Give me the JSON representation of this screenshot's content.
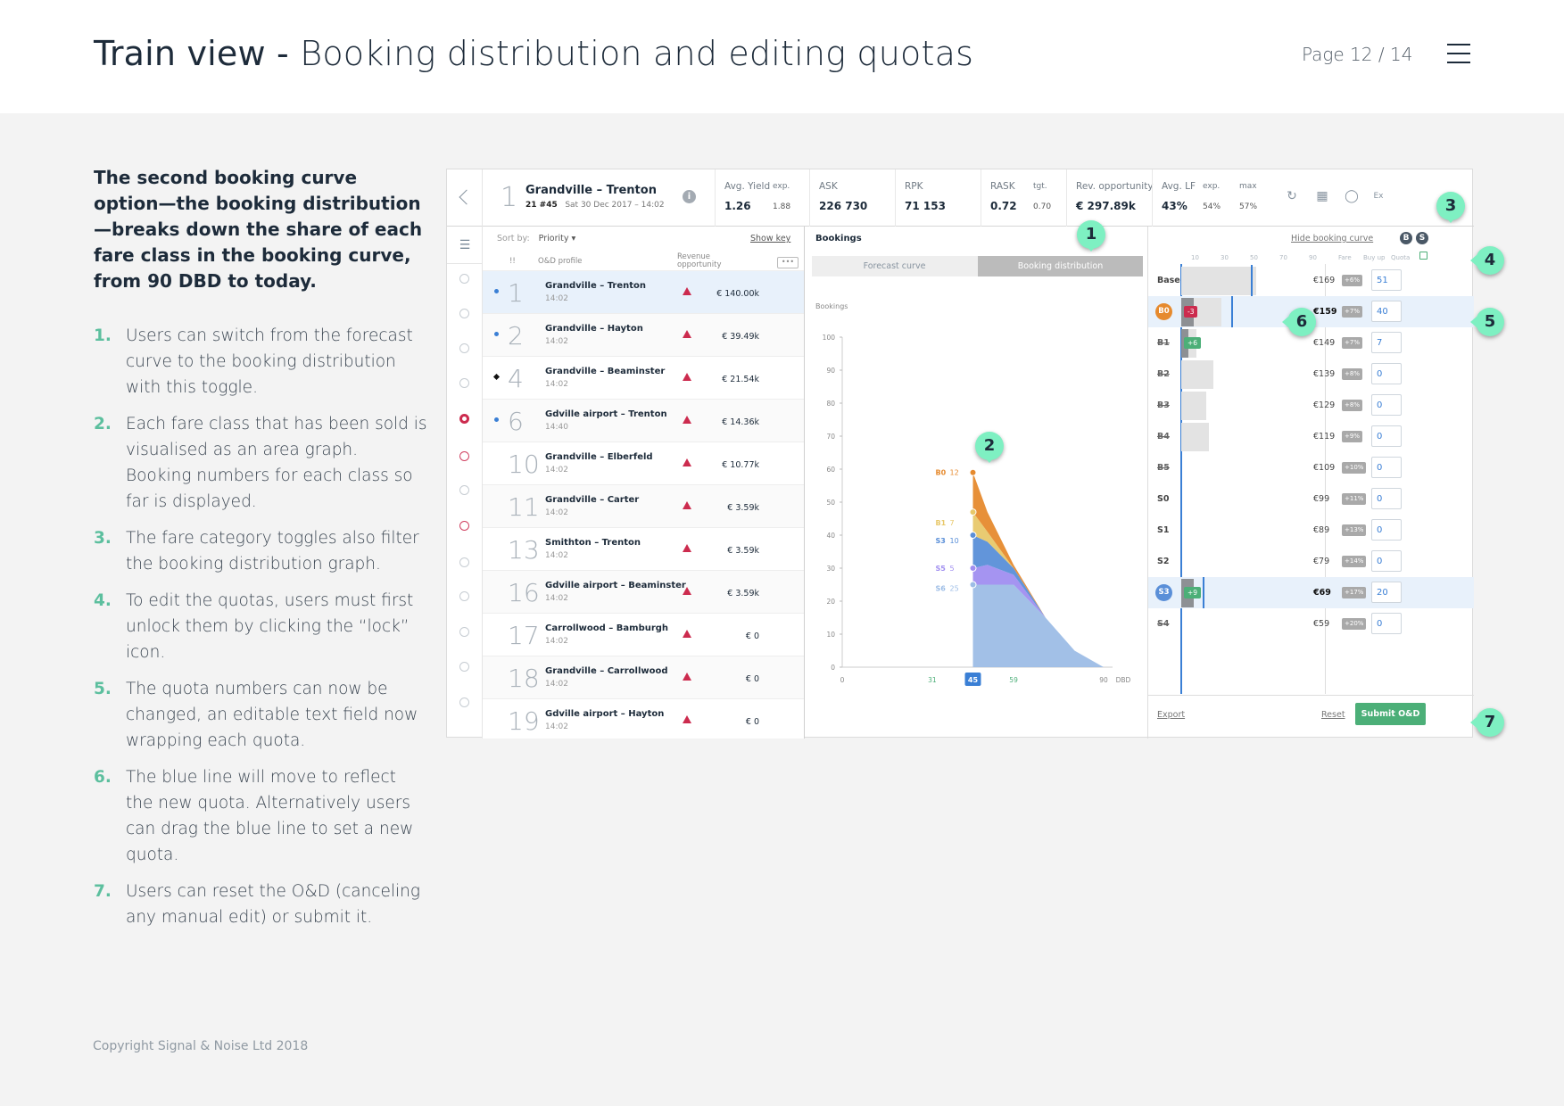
{
  "slide": {
    "title_strong": "Train view - ",
    "title_rest": "Booking distribution and editing quotas",
    "page": "Page 12 / 14",
    "intro": "The second booking curve option—the booking distribution—breaks down the share of each fare class in the booking curve, from 90 DBD to today.",
    "steps": [
      {
        "n": "1.",
        "text": "Users can switch from the forecast curve to the booking distribution with this toggle."
      },
      {
        "n": "2.",
        "text": "Each fare class that has been sold is visualised as an area graph. Booking numbers for each class so far is displayed."
      },
      {
        "n": "3.",
        "text": "The fare category toggles also filter the booking distribution graph."
      },
      {
        "n": "4.",
        "text": "To edit the quotas, users must first unlock them by clicking the “lock” icon."
      },
      {
        "n": "5.",
        "text": "The quota numbers can now be changed, an editable text field now wrapping each quota."
      },
      {
        "n": "6.",
        "text": "The blue line will move to reflect the new quota. Alternatively users can drag the blue line to set a new quota."
      },
      {
        "n": "7.",
        "text": "Users can reset the O&D (canceling any manual edit) or submit it."
      }
    ],
    "copyright": "Copyright Signal & Noise Ltd 2018",
    "callouts": [
      "1",
      "2",
      "3",
      "4",
      "5",
      "6",
      "7"
    ]
  },
  "header": {
    "num": "1",
    "route": "Grandville – Trenton",
    "train": "21 #45",
    "date": "Sat 30 Dec 2017 – 14:02",
    "kpis": [
      {
        "label": "Avg. Yield",
        "value": "1.26",
        "sub_label": "exp.",
        "sub_value": "1.88"
      },
      {
        "label": "ASK",
        "value": "226 730"
      },
      {
        "label": "RPK",
        "value": "71 153"
      },
      {
        "label": "RASK",
        "value": "0.72",
        "sub_label": "tgt.",
        "sub_value": "0.70"
      },
      {
        "label": "Rev. opportunity",
        "value": "€ 297.89k"
      },
      {
        "label": "Avg. LF",
        "value": "43%",
        "sub_label": "exp.",
        "sub_value": "54%",
        "sub_label2": "max",
        "sub_value2": "57%"
      }
    ],
    "ex_label": "Ex"
  },
  "list": {
    "sort_label": "Sort by:",
    "sort_value": "Priority ▾",
    "show_key": "Show key",
    "col_flag": "!!",
    "col_profile": "O&D profile",
    "col_rev": "Revenue opportunity",
    "rows": [
      {
        "n": "1",
        "route": "Grandville – Trenton",
        "time": "14:02",
        "rev": "€ 140.00k"
      },
      {
        "n": "2",
        "route": "Grandville – Hayton",
        "time": "14:02",
        "rev": "€ 39.49k"
      },
      {
        "n": "4",
        "route": "Grandville – Beaminster",
        "time": "14:02",
        "rev": "€ 21.54k"
      },
      {
        "n": "6",
        "route": "Gdville airport – Trenton",
        "time": "14:40",
        "rev": "€ 14.36k"
      },
      {
        "n": "10",
        "route": "Grandville – Elberfeld",
        "time": "14:02",
        "rev": "€ 10.77k"
      },
      {
        "n": "11",
        "route": "Grandville – Carter",
        "time": "14:02",
        "rev": "€ 3.59k"
      },
      {
        "n": "13",
        "route": "Smithton – Trenton",
        "time": "14:02",
        "rev": "€ 3.59k"
      },
      {
        "n": "16",
        "route": "Gdville airport – Beaminster",
        "time": "14:02",
        "rev": "€ 3.59k"
      },
      {
        "n": "17",
        "route": "Carrollwood – Bamburgh",
        "time": "14:02",
        "rev": "€ 0"
      },
      {
        "n": "18",
        "route": "Grandville – Carrollwood",
        "time": "14:02",
        "rev": "€ 0"
      },
      {
        "n": "19",
        "route": "Gdville airport – Hayton",
        "time": "14:02",
        "rev": "€ 0"
      }
    ]
  },
  "bookings": {
    "title": "Bookings",
    "toggle_forecast": "Forecast curve",
    "toggle_distribution": "Booking distribution"
  },
  "chart_data": {
    "type": "area",
    "ylabel": "Bookings",
    "xlabel": "DBD",
    "ylim": [
      0,
      100
    ],
    "yticks": [
      0,
      10,
      20,
      30,
      40,
      50,
      60,
      70,
      80,
      90,
      100
    ],
    "xticks": [
      "0",
      "31",
      "45",
      "59",
      "90"
    ],
    "current_dbd": "45",
    "series_colors": {
      "B0": "#e68a2e",
      "B1": "#e8c86a",
      "S3": "#5a8fd8",
      "S5": "#a08ef0",
      "S6": "#9dbde6"
    },
    "stack_labels": [
      {
        "name": "B0",
        "value": "12"
      },
      {
        "name": "B1",
        "value": "7"
      },
      {
        "name": "S3",
        "value": "10"
      },
      {
        "name": "S5",
        "value": "5"
      },
      {
        "name": "S6",
        "value": "25"
      }
    ],
    "x_dbd": [
      45,
      50,
      59,
      70,
      80,
      90
    ],
    "series": [
      {
        "name": "S6",
        "values": [
          25,
          25,
          25,
          15,
          5,
          0
        ]
      },
      {
        "name": "S5",
        "values": [
          5,
          6,
          3,
          0,
          0,
          0
        ]
      },
      {
        "name": "S3",
        "values": [
          10,
          7,
          2,
          0,
          0,
          0
        ]
      },
      {
        "name": "B1",
        "values": [
          7,
          3,
          0,
          0,
          0,
          0
        ]
      },
      {
        "name": "B0",
        "values": [
          12,
          6,
          1,
          0,
          0,
          0
        ]
      }
    ]
  },
  "fares": {
    "hide_curve": "Hide booking curve",
    "toggle_b": "B",
    "toggle_s": "S",
    "head_fare": "Fare",
    "head_buyup": "Buy up",
    "head_quota": "Quota",
    "scale": [
      "10",
      "30",
      "50",
      "70",
      "90"
    ],
    "rows": [
      {
        "cls": "Base",
        "fare": "€169",
        "pct": "+6%",
        "quota": "51",
        "bar": 0.6,
        "line": 0.56
      },
      {
        "cls": "B0",
        "fare": "€159",
        "pct": "+7%",
        "quota": "40",
        "bar": 0.32,
        "sold": 0.1,
        "line": 0.4,
        "chip": "-3",
        "chip_color": "#cc2b4e",
        "badge_color": "#e68a2e"
      },
      {
        "cls": "B1",
        "fare": "€149",
        "pct": "+7%",
        "quota": "7",
        "bar": 0.12,
        "sold": 0.06,
        "chip": "+6",
        "chip_color": "#4caf78"
      },
      {
        "cls": "B2",
        "fare": "€139",
        "pct": "+8%",
        "quota": "0",
        "bar": 0.26
      },
      {
        "cls": "B3",
        "fare": "€129",
        "pct": "+8%",
        "quota": "0",
        "bar": 0.2
      },
      {
        "cls": "B4",
        "fare": "€119",
        "pct": "+9%",
        "quota": "0",
        "bar": 0.22
      },
      {
        "cls": "B5",
        "fare": "€109",
        "pct": "+10%",
        "quota": "0",
        "bar": 0
      },
      {
        "cls": "S0",
        "fare": "€99",
        "pct": "+11%",
        "quota": "0",
        "bar": 0
      },
      {
        "cls": "S1",
        "fare": "€89",
        "pct": "+13%",
        "quota": "0",
        "bar": 0
      },
      {
        "cls": "S2",
        "fare": "€79",
        "pct": "+14%",
        "quota": "0",
        "bar": 0
      },
      {
        "cls": "S3",
        "fare": "€69",
        "pct": "+17%",
        "quota": "20",
        "bar": 0.1,
        "sold": 0.1,
        "line": 0.17,
        "chip": "+9",
        "chip_color": "#4caf78",
        "badge_color": "#5a8fd8"
      },
      {
        "cls": "S4",
        "fare": "€59",
        "pct": "+20%",
        "quota": "0",
        "bar": 0
      }
    ],
    "export": "Export",
    "reset": "Reset",
    "submit": "Submit O&D"
  }
}
